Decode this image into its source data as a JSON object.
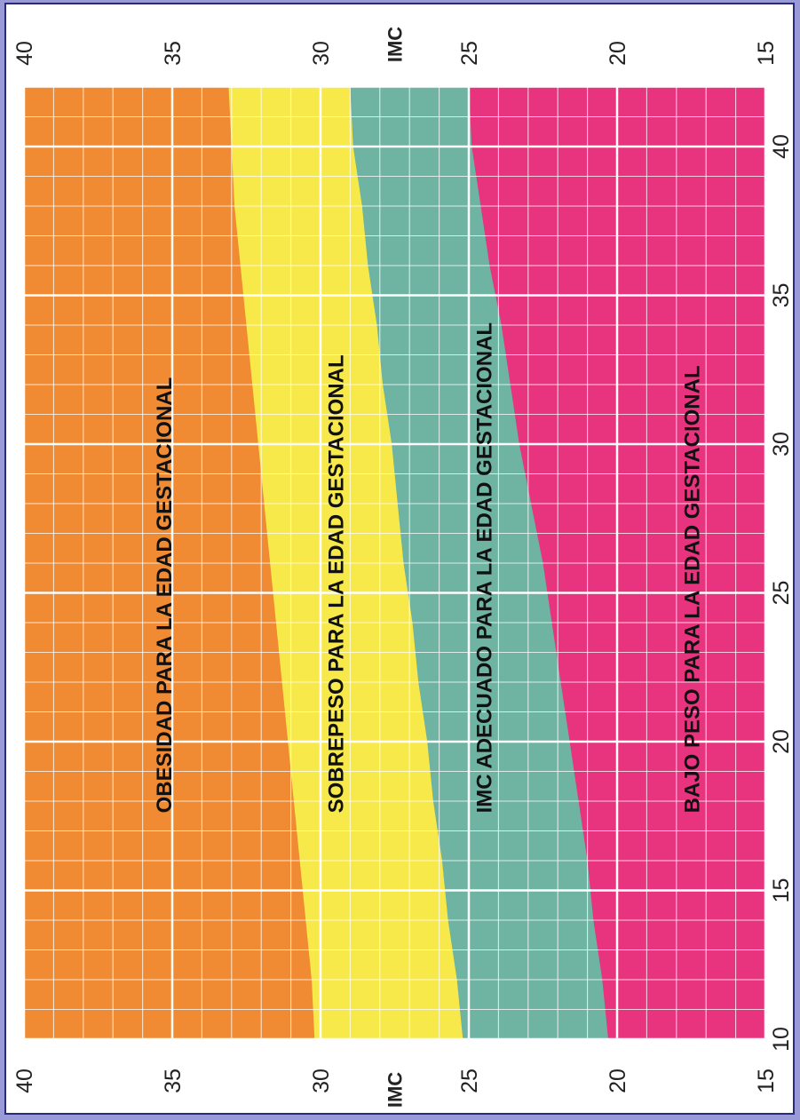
{
  "chart_data": {
    "type": "area",
    "orientation": "rotated 90° counter-clockwise",
    "x_label": "",
    "y_label": "IMC",
    "x_ticks": [
      "10",
      "15",
      "20",
      "25",
      "30",
      "35",
      "40"
    ],
    "y_ticks": [
      "15",
      "20",
      "25",
      "30",
      "35",
      "40"
    ],
    "xlim": [
      10,
      42
    ],
    "ylim": [
      15,
      40
    ],
    "x": [
      10,
      12,
      14,
      16,
      18,
      20,
      22,
      24,
      26,
      28,
      30,
      32,
      34,
      36,
      38,
      40,
      42
    ],
    "boundaries": [
      {
        "name": "bajo_adecuado",
        "values": [
          20.3,
          20.5,
          20.8,
          21.0,
          21.3,
          21.6,
          21.9,
          22.2,
          22.5,
          22.9,
          23.3,
          23.6,
          23.9,
          24.3,
          24.6,
          24.9,
          25.0
        ]
      },
      {
        "name": "adecuado_sobrepeso",
        "values": [
          25.2,
          25.4,
          25.7,
          25.9,
          26.2,
          26.4,
          26.7,
          26.9,
          27.2,
          27.4,
          27.6,
          27.9,
          28.1,
          28.4,
          28.6,
          28.9,
          29.0
        ]
      },
      {
        "name": "sobrepeso_obesidad",
        "values": [
          30.2,
          30.3,
          30.5,
          30.7,
          30.9,
          31.1,
          31.3,
          31.5,
          31.7,
          31.9,
          32.1,
          32.3,
          32.5,
          32.7,
          32.9,
          33.0,
          33.1
        ]
      }
    ],
    "zones": [
      {
        "label": "BAJO PESO PARA LA EDAD GESTACIONAL",
        "color": "#e8347e",
        "label_y": 17.5
      },
      {
        "label": "IMC ADECUADO PARA LA EDAD GESTACIONAL",
        "color": "#6fb3a3",
        "label_y": 24.5
      },
      {
        "label": "SOBREPESO PARA LA EDAD GESTACIONAL",
        "color": "#f7e94a",
        "label_y": 29.5
      },
      {
        "label": "OBESIDAD PARA LA EDAD GESTACIONAL",
        "color": "#f08b33",
        "label_y": 35.3
      }
    ],
    "grid": true
  }
}
